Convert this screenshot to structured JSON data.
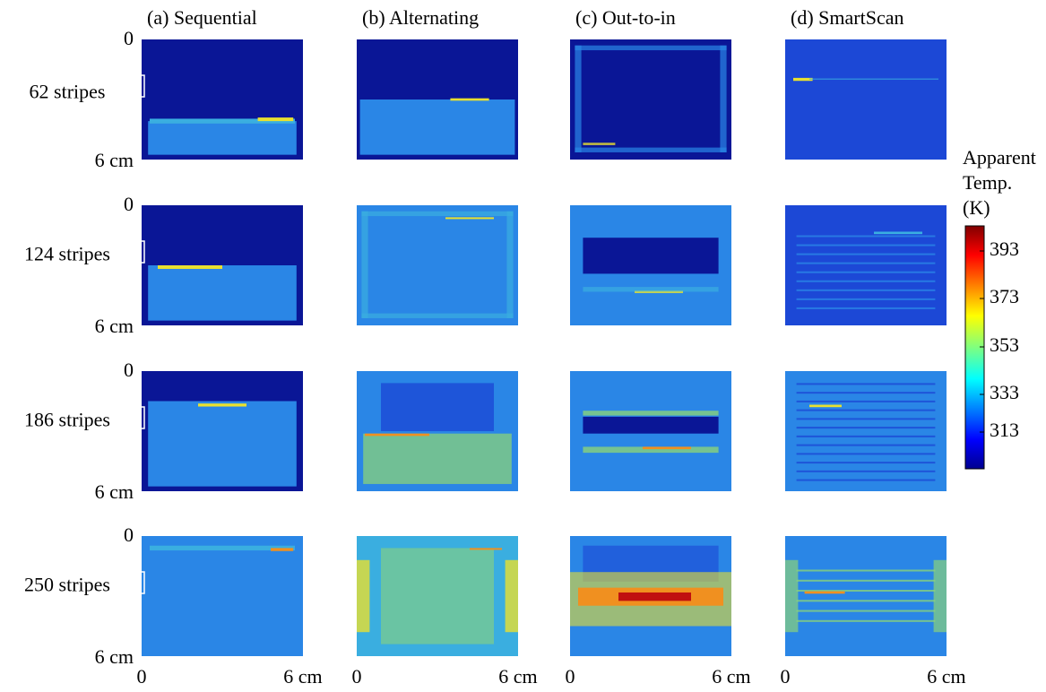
{
  "columns": [
    "(a) Sequential",
    "(b) Alternating",
    "(c) Out-to-in",
    "(d) SmartScan"
  ],
  "rows": [
    "62 stripes",
    "124 stripes",
    "186 stripes",
    "250 stripes"
  ],
  "y_axis": {
    "top": "0",
    "bottom": "6 cm"
  },
  "x_axis": {
    "left": "0",
    "right": "6 cm"
  },
  "colorbar": {
    "title": [
      "Apparent",
      "Temp.",
      "(K)"
    ],
    "ticks": [
      "393",
      "373",
      "353",
      "333",
      "313"
    ]
  }
}
